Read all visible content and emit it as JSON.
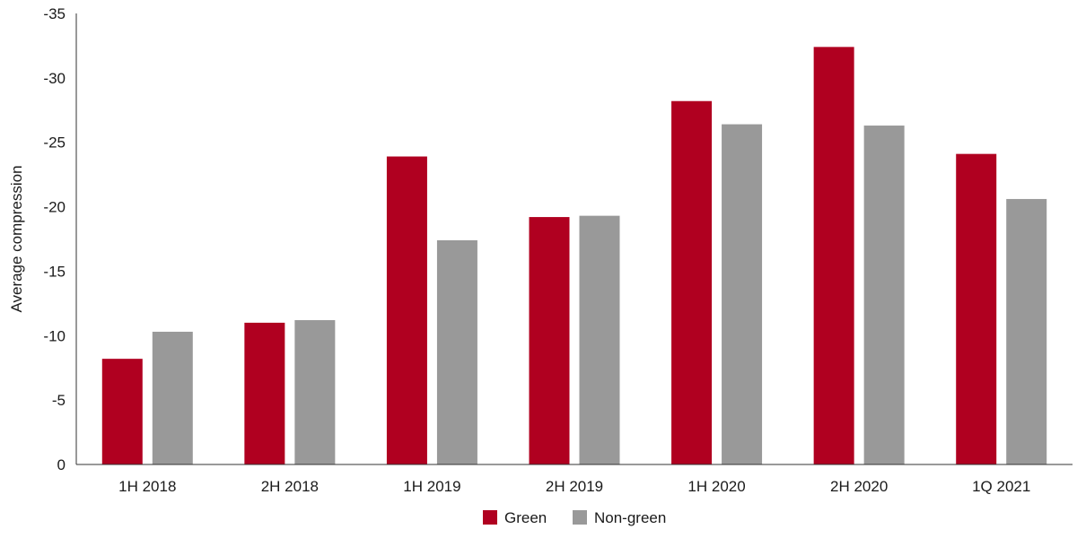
{
  "chart_data": {
    "type": "bar",
    "categories": [
      "1H 2018",
      "2H 2018",
      "1H 2019",
      "2H 2019",
      "1H 2020",
      "2H 2020",
      "1Q 2021"
    ],
    "series": [
      {
        "name": "Green",
        "color": "#b00020",
        "values": [
          -8.2,
          -11.0,
          -23.9,
          -19.2,
          -28.2,
          -32.4,
          -24.1
        ]
      },
      {
        "name": "Non-green",
        "color": "#999999",
        "values": [
          -10.3,
          -11.2,
          -17.4,
          -19.3,
          -26.4,
          -26.3,
          -20.6
        ]
      }
    ],
    "ylabel": "Average compression",
    "xlabel": "",
    "title": "",
    "ylim": [
      0,
      -35
    ],
    "yticks": [
      0,
      -5,
      -10,
      -15,
      -20,
      -25,
      -30,
      -35
    ],
    "grid": false,
    "legend_position": "bottom-center"
  }
}
